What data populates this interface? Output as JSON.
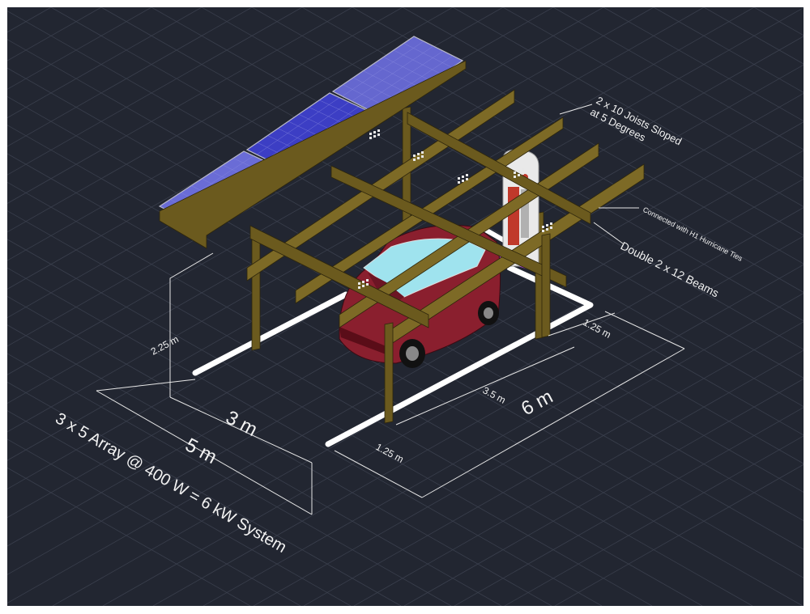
{
  "colors": {
    "background": "#222631",
    "grid": "#3a3f4d",
    "timber": "#6b5a1e",
    "panel": "#5a5cc8",
    "panel_center": "#3e40c0",
    "parking_lines": "#ffffff",
    "charger_accent": "#c0392b",
    "magenta_pad": "#b23bd1",
    "car_body": "#8a1f2e",
    "dimension_lines": "#e6e6e6"
  },
  "annotations": {
    "joists": "2 x 10 Joists Sloped\nat 5 Degrees",
    "ties": "Connected with H1 Hurricane Ties",
    "beams": "Double 2 x 12 Beams",
    "array": "3 x 5 Array @ 400 W = 6 kW System"
  },
  "dimensions": {
    "height": "2.25 m",
    "post_width": "3 m",
    "total_width": "5 m",
    "total_length": "6 m",
    "span_mid": "3.5 m",
    "span_front": "1.25 m",
    "span_back": "1.25 m"
  },
  "icons": {
    "car": "electric-car-icon",
    "charger": "ev-charger-icon",
    "panels": "solar-panel-icon"
  }
}
